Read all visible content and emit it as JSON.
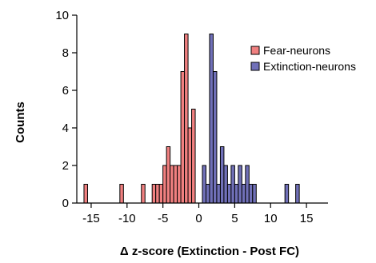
{
  "chart_data": {
    "type": "bar",
    "subtype": "histogram",
    "xlabel": "Δ z-score (Extinction - Post FC)",
    "ylabel": "Counts",
    "xlim": [
      -17,
      18
    ],
    "ylim": [
      0,
      10
    ],
    "bin_width": 0.5,
    "x_ticks": [
      -15,
      -10,
      -5,
      0,
      5,
      10,
      15
    ],
    "y_ticks": [
      0,
      2,
      4,
      6,
      8,
      10
    ],
    "x_tick_labels": [
      "-15",
      "-10",
      "-5",
      "0",
      "5",
      "10",
      "15"
    ],
    "y_tick_labels": [
      "0",
      "2",
      "4",
      "6",
      "8",
      "10"
    ],
    "grid": false,
    "legend_position": "top-right",
    "series": [
      {
        "name": "Fear-neurons",
        "color": "#f08080",
        "bins": [
          {
            "x0": -16.0,
            "count": 1
          },
          {
            "x0": -11.0,
            "count": 1
          },
          {
            "x0": -8.0,
            "count": 1
          },
          {
            "x0": -6.5,
            "count": 1
          },
          {
            "x0": -6.0,
            "count": 1
          },
          {
            "x0": -5.5,
            "count": 1
          },
          {
            "x0": -5.0,
            "count": 2
          },
          {
            "x0": -4.5,
            "count": 3
          },
          {
            "x0": -4.0,
            "count": 2
          },
          {
            "x0": -3.5,
            "count": 2
          },
          {
            "x0": -3.0,
            "count": 2
          },
          {
            "x0": -2.5,
            "count": 7
          },
          {
            "x0": -2.0,
            "count": 9
          },
          {
            "x0": -1.5,
            "count": 4
          },
          {
            "x0": -1.0,
            "count": 5
          }
        ]
      },
      {
        "name": "Extinction-neurons",
        "color": "#7070b8",
        "bins": [
          {
            "x0": 0.5,
            "count": 2
          },
          {
            "x0": 1.0,
            "count": 1
          },
          {
            "x0": 1.5,
            "count": 9
          },
          {
            "x0": 2.0,
            "count": 7
          },
          {
            "x0": 2.5,
            "count": 1
          },
          {
            "x0": 3.0,
            "count": 3
          },
          {
            "x0": 3.5,
            "count": 2
          },
          {
            "x0": 4.0,
            "count": 1
          },
          {
            "x0": 4.5,
            "count": 2
          },
          {
            "x0": 5.0,
            "count": 1
          },
          {
            "x0": 5.5,
            "count": 2
          },
          {
            "x0": 6.0,
            "count": 1
          },
          {
            "x0": 6.5,
            "count": 2
          },
          {
            "x0": 7.0,
            "count": 1
          },
          {
            "x0": 7.5,
            "count": 1
          },
          {
            "x0": 12.0,
            "count": 1
          },
          {
            "x0": 13.5,
            "count": 1
          }
        ]
      }
    ]
  }
}
